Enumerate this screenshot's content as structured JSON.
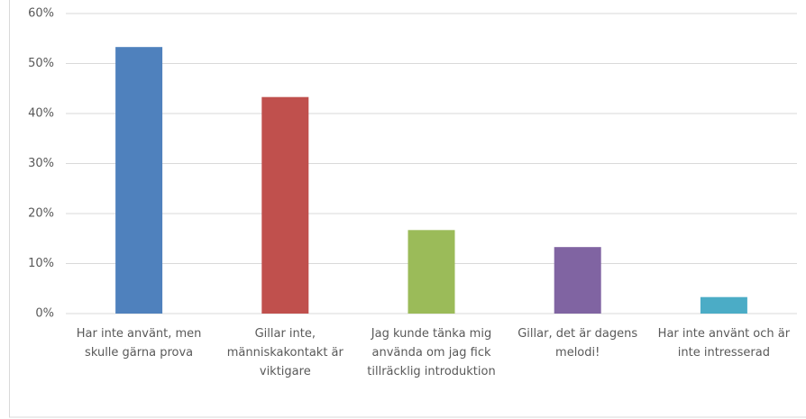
{
  "chart_data": {
    "type": "bar",
    "categories": [
      "Har inte använt, men skulle gärna prova",
      "Gillar inte, människakontakt är viktigare",
      "Jag kunde tänka mig använda om jag fick tillräcklig introduktion",
      "Gillar, det är dagens melodi!",
      "Har inte använt och är inte intresserad"
    ],
    "values": [
      53.3,
      43.3,
      16.7,
      13.3,
      3.3
    ],
    "colors": [
      "#4f81bd",
      "#c0504d",
      "#9bbb59",
      "#8064a2",
      "#4bacc6"
    ],
    "ylim": [
      0,
      60
    ],
    "yticks": [
      {
        "value": 0,
        "label": "0%"
      },
      {
        "value": 10,
        "label": "10%"
      },
      {
        "value": 20,
        "label": "20%"
      },
      {
        "value": 30,
        "label": "30%"
      },
      {
        "value": 40,
        "label": "40%"
      },
      {
        "value": 50,
        "label": "50%"
      },
      {
        "value": 60,
        "label": "60%"
      }
    ],
    "grid": true
  }
}
